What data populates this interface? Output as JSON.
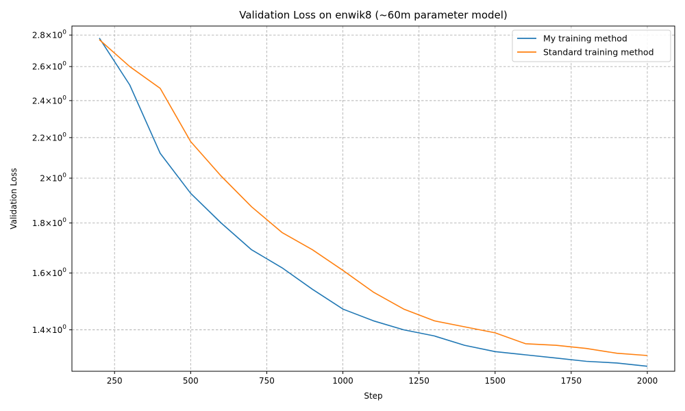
{
  "chart_data": {
    "type": "line",
    "title": "Validation Loss on enwik8 (~60m parameter model)",
    "xlabel": "Step",
    "ylabel": "Validation Loss",
    "yscale": "log",
    "xlim": [
      110,
      2090
    ],
    "ylim": [
      1.27,
      2.86
    ],
    "grid": true,
    "legend_position": "top-right",
    "x": [
      200,
      300,
      400,
      500,
      600,
      700,
      800,
      900,
      1000,
      1100,
      1200,
      1300,
      1400,
      1500,
      1600,
      1700,
      1800,
      1900,
      2000
    ],
    "series": [
      {
        "name": "My training method",
        "color": "#1f77b4",
        "values": [
          2.78,
          2.49,
          2.12,
          1.93,
          1.8,
          1.69,
          1.62,
          1.54,
          1.47,
          1.43,
          1.4,
          1.38,
          1.35,
          1.33,
          1.32,
          1.31,
          1.3,
          1.295,
          1.285
        ]
      },
      {
        "name": "Standard training method",
        "color": "#ff7f0e",
        "values": [
          2.77,
          2.6,
          2.47,
          2.18,
          2.01,
          1.87,
          1.76,
          1.69,
          1.61,
          1.53,
          1.47,
          1.43,
          1.41,
          1.39,
          1.355,
          1.35,
          1.34,
          1.325,
          1.318
        ]
      }
    ],
    "x_ticks": [
      {
        "value": 250,
        "label": "250"
      },
      {
        "value": 500,
        "label": "500"
      },
      {
        "value": 750,
        "label": "750"
      },
      {
        "value": 1000,
        "label": "1000"
      },
      {
        "value": 1250,
        "label": "1250"
      },
      {
        "value": 1500,
        "label": "1500"
      },
      {
        "value": 1750,
        "label": "1750"
      },
      {
        "value": 2000,
        "label": "2000"
      }
    ],
    "y_ticks": [
      {
        "value": 1.4,
        "mantissa": "1.4",
        "base": "10",
        "exponent": "0"
      },
      {
        "value": 1.6,
        "mantissa": "1.6",
        "base": "10",
        "exponent": "0"
      },
      {
        "value": 1.8,
        "mantissa": "1.8",
        "base": "10",
        "exponent": "0"
      },
      {
        "value": 2.0,
        "mantissa": "2",
        "base": "10",
        "exponent": "0"
      },
      {
        "value": 2.2,
        "mantissa": "2.2",
        "base": "10",
        "exponent": "0"
      },
      {
        "value": 2.4,
        "mantissa": "2.4",
        "base": "10",
        "exponent": "0"
      },
      {
        "value": 2.6,
        "mantissa": "2.6",
        "base": "10",
        "exponent": "0"
      },
      {
        "value": 2.8,
        "mantissa": "2.8",
        "base": "10",
        "exponent": "0"
      }
    ]
  }
}
